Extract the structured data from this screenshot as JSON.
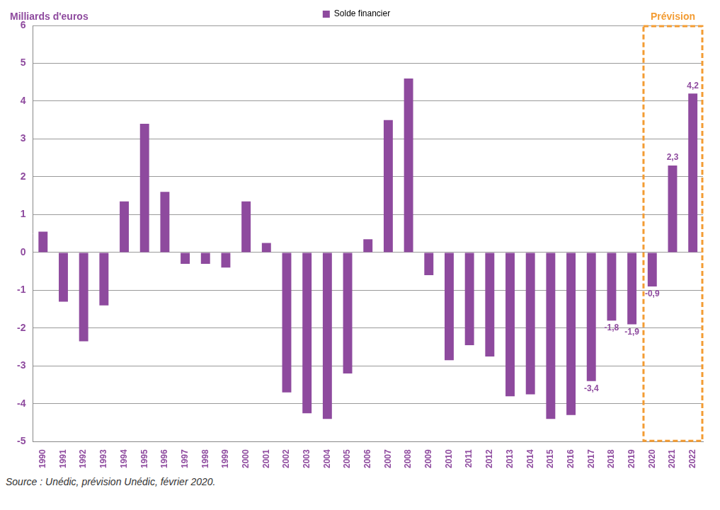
{
  "chart_data": {
    "type": "bar",
    "y_label": "Milliards d'euros",
    "source": "Source : Unédic, prévision Unédic, février 2020.",
    "categories": [
      "1990",
      "1991",
      "1992",
      "1993",
      "1994",
      "1995",
      "1996",
      "1997",
      "1998",
      "1999",
      "2000",
      "2001",
      "2002",
      "2003",
      "2004",
      "2005",
      "2006",
      "2007",
      "2008",
      "2009",
      "2010",
      "2011",
      "2012",
      "2013",
      "2014",
      "2015",
      "2016",
      "2017",
      "2018",
      "2019",
      "2020",
      "2021",
      "2022"
    ],
    "series": [
      {
        "name": "Solde financier",
        "color": "#8e4a9e",
        "values": [
          0.55,
          -1.3,
          -2.35,
          -1.4,
          1.35,
          3.4,
          1.6,
          -0.3,
          -0.3,
          -0.4,
          1.35,
          0.25,
          -3.7,
          -4.25,
          -4.4,
          -3.2,
          0.35,
          3.5,
          4.6,
          -0.6,
          -2.85,
          -2.45,
          -2.75,
          -3.8,
          -3.75,
          -4.4,
          -4.3,
          -3.4,
          -1.8,
          -1.9,
          -0.9,
          2.3,
          4.2
        ],
        "value_labels": [
          null,
          null,
          null,
          null,
          null,
          null,
          null,
          null,
          null,
          null,
          null,
          null,
          null,
          null,
          null,
          null,
          null,
          null,
          null,
          null,
          null,
          null,
          null,
          null,
          null,
          null,
          null,
          "-3,4",
          "-1,8",
          "-1,9",
          "-0,9",
          "2,3",
          "4,2"
        ]
      }
    ],
    "ylim": [
      -5,
      6
    ],
    "yticks": [
      -5,
      -4,
      -3,
      -2,
      -1,
      0,
      1,
      2,
      3,
      4,
      5,
      6
    ],
    "grid": true,
    "legend": "top",
    "data_labels": true,
    "annotations": [
      {
        "text": "Prévision",
        "x_start": "2020",
        "x_end": "2022",
        "color": "#f39c33"
      }
    ]
  }
}
